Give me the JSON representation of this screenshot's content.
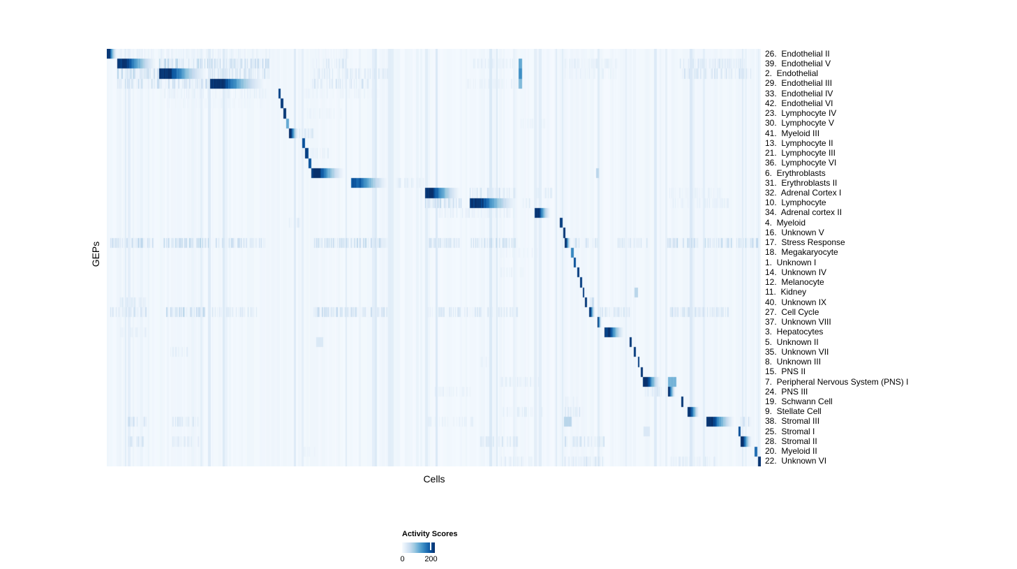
{
  "chart_data": {
    "type": "heatmap",
    "title": "",
    "xlabel": "Cells",
    "ylabel": "GEPs",
    "grid": false,
    "colorbar": {
      "title": "Activity Scores",
      "tick_labels": [
        "0",
        "200"
      ],
      "ticks": [
        0,
        200
      ],
      "domain": [
        0,
        230
      ]
    },
    "colormap": {
      "name": "Blues",
      "stops": [
        "#f7fbff",
        "#deebf7",
        "#c6dbef",
        "#9ecae1",
        "#6baed6",
        "#4292c6",
        "#2171b5",
        "#08519c",
        "#08306b"
      ]
    },
    "n_rows": 42,
    "rows": [
      {
        "label": "26.  Endothelial II",
        "segments": [
          [
            0.0,
            0.016,
            1.0,
            "fade"
          ],
          [
            0.02,
            0.25,
            0.1,
            "stripes"
          ],
          [
            0.315,
            0.37,
            0.08,
            "stripes"
          ]
        ]
      },
      {
        "label": "39.  Endothelial V",
        "segments": [
          [
            0.016,
            0.08,
            1.0,
            "fade"
          ],
          [
            0.08,
            0.157,
            0.34,
            "stripes"
          ],
          [
            0.157,
            0.248,
            0.28,
            "stripes"
          ],
          [
            0.313,
            0.366,
            0.17,
            "stripes"
          ],
          [
            0.56,
            0.625,
            0.12,
            "stripes"
          ],
          [
            0.6295,
            0.634,
            0.55,
            "solid"
          ],
          [
            0.7,
            0.78,
            0.12,
            "stripes"
          ],
          [
            0.875,
            0.975,
            0.2,
            "stripes"
          ]
        ]
      },
      {
        "label": "2.  Endothelial",
        "segments": [
          [
            0.016,
            0.08,
            0.32,
            "stripes"
          ],
          [
            0.08,
            0.157,
            1.0,
            "fade"
          ],
          [
            0.157,
            0.248,
            0.27,
            "stripes"
          ],
          [
            0.313,
            0.43,
            0.16,
            "stripes"
          ],
          [
            0.6295,
            0.634,
            0.65,
            "solid"
          ],
          [
            0.7,
            0.78,
            0.1,
            "stripes"
          ],
          [
            0.875,
            0.985,
            0.22,
            "stripes"
          ]
        ]
      },
      {
        "label": "29.  Endothelial III",
        "segments": [
          [
            0.016,
            0.08,
            0.3,
            "stripes"
          ],
          [
            0.08,
            0.157,
            0.26,
            "stripes"
          ],
          [
            0.157,
            0.248,
            1.0,
            "fade"
          ],
          [
            0.313,
            0.4,
            0.22,
            "stripes"
          ],
          [
            0.55,
            0.63,
            0.1,
            "stripes"
          ],
          [
            0.6295,
            0.634,
            0.45,
            "solid"
          ]
        ]
      },
      {
        "label": "33.  Endothelial IV",
        "segments": [
          [
            0.085,
            0.245,
            0.12,
            "stripes"
          ],
          [
            0.2615,
            0.2655,
            1.0,
            "solid"
          ],
          [
            0.3,
            0.42,
            0.08,
            "stripes"
          ]
        ]
      },
      {
        "label": "42.  Endothelial VI",
        "segments": [
          [
            0.09,
            0.24,
            0.06,
            "stripes"
          ],
          [
            0.2655,
            0.269,
            1.0,
            "solid"
          ]
        ]
      },
      {
        "label": "23.  Lymphocyte IV",
        "segments": [
          [
            0.27,
            0.2735,
            1.0,
            "solid"
          ],
          [
            0.3,
            0.36,
            0.08,
            "stripes"
          ]
        ]
      },
      {
        "label": "30.  Lymphocyte V",
        "segments": [
          [
            0.2735,
            0.2785,
            0.55,
            "solid"
          ],
          [
            0.63,
            0.67,
            0.08,
            "stripes"
          ]
        ]
      },
      {
        "label": "41.  Myeloid III",
        "segments": [
          [
            0.2775,
            0.2935,
            1.0,
            "fade"
          ],
          [
            0.2935,
            0.315,
            0.18,
            "stripes"
          ]
        ]
      },
      {
        "label": "13.  Lymphocyte II",
        "segments": [
          [
            0.2988,
            0.3022,
            0.92,
            "solid"
          ]
        ]
      },
      {
        "label": "21.  Lymphocyte III",
        "segments": [
          [
            0.3022,
            0.3074,
            0.95,
            "solid"
          ],
          [
            0.31,
            0.34,
            0.12,
            "stripes"
          ]
        ]
      },
      {
        "label": "36.  Lymphocyte VI",
        "segments": [
          [
            0.3074,
            0.3127,
            0.9,
            "solid"
          ]
        ]
      },
      {
        "label": "6.  Erythroblasts",
        "segments": [
          [
            0.3127,
            0.366,
            1.0,
            "fade"
          ],
          [
            0.748,
            0.752,
            0.3,
            "solid"
          ]
        ]
      },
      {
        "label": "31.  Erythroblasts II",
        "segments": [
          [
            0.3735,
            0.4343,
            0.85,
            "fade"
          ],
          [
            0.4343,
            0.485,
            0.14,
            "stripes"
          ]
        ]
      },
      {
        "label": "32.  Adrenal Cortex I",
        "segments": [
          [
            0.4856,
            0.5432,
            1.0,
            "fade"
          ],
          [
            0.5539,
            0.625,
            0.25,
            "stripes"
          ],
          [
            0.655,
            0.68,
            0.14,
            "stripes"
          ],
          [
            0.86,
            0.94,
            0.1,
            "stripes"
          ]
        ]
      },
      {
        "label": "10.  Lymphocyte",
        "segments": [
          [
            0.4856,
            0.5432,
            0.3,
            "stripes"
          ],
          [
            0.5539,
            0.6318,
            1.0,
            "fade"
          ],
          [
            0.634,
            0.651,
            0.18,
            "stripes"
          ],
          [
            0.86,
            0.95,
            0.12,
            "stripes"
          ]
        ]
      },
      {
        "label": "34.  Adrenal cortex II",
        "segments": [
          [
            0.5,
            0.625,
            0.12,
            "stripes"
          ],
          [
            0.6542,
            0.6798,
            1.0,
            "fade"
          ]
        ]
      },
      {
        "label": "4.  Myeloid",
        "segments": [
          [
            0.2775,
            0.2965,
            0.3,
            "stripes"
          ],
          [
            0.6926,
            0.6969,
            1.0,
            "solid"
          ]
        ]
      },
      {
        "label": "16.  Unknown V",
        "segments": [
          [
            0.6973,
            0.7005,
            1.0,
            "solid"
          ]
        ]
      },
      {
        "label": "17.  Stress Response",
        "segments": [
          [
            0.005,
            0.072,
            0.3,
            "stripes"
          ],
          [
            0.085,
            0.155,
            0.32,
            "stripes"
          ],
          [
            0.16,
            0.245,
            0.26,
            "stripes"
          ],
          [
            0.315,
            0.43,
            0.3,
            "stripes"
          ],
          [
            0.487,
            0.54,
            0.25,
            "stripes"
          ],
          [
            0.555,
            0.628,
            0.3,
            "stripes"
          ],
          [
            0.6995,
            0.7097,
            1.0,
            "fade"
          ],
          [
            0.713,
            0.75,
            0.25,
            "stripes"
          ],
          [
            0.78,
            0.83,
            0.22,
            "stripes"
          ],
          [
            0.855,
            0.905,
            0.3,
            "stripes"
          ],
          [
            0.912,
            0.958,
            0.34,
            "stripes"
          ],
          [
            0.962,
            0.995,
            0.3,
            "stripes"
          ]
        ]
      },
      {
        "label": "18.  Megakaryocyte",
        "segments": [
          [
            0.6,
            0.66,
            0.08,
            "stripes"
          ],
          [
            0.7097,
            0.7135,
            0.7,
            "solid"
          ]
        ]
      },
      {
        "label": "1.  Unknown I",
        "segments": [
          [
            0.7135,
            0.717,
            0.92,
            "solid"
          ]
        ]
      },
      {
        "label": "14.  Unknown IV",
        "segments": [
          [
            0.6,
            0.64,
            0.08,
            "stripes"
          ],
          [
            0.7185,
            0.7218,
            1.0,
            "solid"
          ]
        ]
      },
      {
        "label": "12.  Melanocyte",
        "segments": [
          [
            0.7228,
            0.7258,
            1.0,
            "solid"
          ]
        ]
      },
      {
        "label": "11.  Kidney",
        "segments": [
          [
            0.7268,
            0.7298,
            1.0,
            "solid"
          ],
          [
            0.806,
            0.812,
            0.3,
            "solid"
          ]
        ]
      },
      {
        "label": "40.  Unknown IX",
        "segments": [
          [
            0.02,
            0.06,
            0.15,
            "stripes"
          ],
          [
            0.7308,
            0.7338,
            1.0,
            "solid"
          ],
          [
            0.736,
            0.744,
            0.25,
            "stripes"
          ]
        ]
      },
      {
        "label": "27.  Cell Cycle",
        "segments": [
          [
            0.005,
            0.06,
            0.25,
            "stripes"
          ],
          [
            0.09,
            0.15,
            0.3,
            "stripes"
          ],
          [
            0.16,
            0.23,
            0.2,
            "stripes"
          ],
          [
            0.315,
            0.43,
            0.3,
            "stripes"
          ],
          [
            0.49,
            0.628,
            0.2,
            "stripes"
          ],
          [
            0.7364,
            0.747,
            1.0,
            "fade"
          ],
          [
            0.75,
            0.8,
            0.2,
            "stripes"
          ],
          [
            0.86,
            0.95,
            0.24,
            "stripes"
          ]
        ]
      },
      {
        "label": "37.  Unknown VIII",
        "segments": [
          [
            0.7492,
            0.7566,
            1.0,
            "fade"
          ]
        ]
      },
      {
        "label": "3.  Hepatocytes",
        "segments": [
          [
            0.02,
            0.06,
            0.1,
            "stripes"
          ],
          [
            0.7609,
            0.7929,
            1.0,
            "fade"
          ]
        ]
      },
      {
        "label": "5.  Unknown II",
        "segments": [
          [
            0.32,
            0.33,
            0.15,
            "solid"
          ],
          [
            0.7983,
            0.8015,
            1.0,
            "solid"
          ]
        ]
      },
      {
        "label": "35.  Unknown VII",
        "segments": [
          [
            0.095,
            0.125,
            0.14,
            "stripes"
          ],
          [
            0.8047,
            0.8079,
            1.0,
            "solid"
          ]
        ]
      },
      {
        "label": "8.  Unknown III",
        "segments": [
          [
            0.57,
            0.59,
            0.1,
            "stripes"
          ],
          [
            0.8111,
            0.8143,
            1.0,
            "solid"
          ]
        ]
      },
      {
        "label": "15.  PNS II",
        "segments": [
          [
            0.8154,
            0.8186,
            1.0,
            "solid"
          ]
        ]
      },
      {
        "label": "7.  Peripheral Nervous System (PNS) I",
        "segments": [
          [
            0.6,
            0.66,
            0.12,
            "stripes"
          ],
          [
            0.8196,
            0.8485,
            1.0,
            "fade"
          ],
          [
            0.857,
            0.8698,
            0.5,
            "solid"
          ]
        ]
      },
      {
        "label": "24.  PNS III",
        "segments": [
          [
            0.5,
            0.56,
            0.1,
            "stripes"
          ],
          [
            0.822,
            0.848,
            0.2,
            "stripes"
          ],
          [
            0.857,
            0.8698,
            1.0,
            "fade"
          ]
        ]
      },
      {
        "label": "19.  Schwann Cell",
        "segments": [
          [
            0.7,
            0.72,
            0.1,
            "stripes"
          ],
          [
            0.8773,
            0.8815,
            1.0,
            "solid"
          ]
        ]
      },
      {
        "label": "9.  Stellate Cell",
        "segments": [
          [
            0.6,
            0.67,
            0.15,
            "stripes"
          ],
          [
            0.7,
            0.73,
            0.2,
            "stripes"
          ],
          [
            0.8879,
            0.9072,
            1.0,
            "fade"
          ]
        ]
      },
      {
        "label": "38.  Stromal III",
        "segments": [
          [
            0.03,
            0.06,
            0.28,
            "stripes"
          ],
          [
            0.1,
            0.14,
            0.2,
            "stripes"
          ],
          [
            0.49,
            0.56,
            0.12,
            "stripes"
          ],
          [
            0.698,
            0.71,
            0.3,
            "solid"
          ],
          [
            0.9157,
            0.9627,
            1.0,
            "fade"
          ],
          [
            0.968,
            0.985,
            0.25,
            "stripes"
          ]
        ]
      },
      {
        "label": "25.  Stromal I",
        "segments": [
          [
            0.82,
            0.83,
            0.15,
            "solid"
          ],
          [
            0.9648,
            0.968,
            0.9,
            "solid"
          ]
        ]
      },
      {
        "label": "28.  Stromal II",
        "segments": [
          [
            0.03,
            0.06,
            0.22,
            "stripes"
          ],
          [
            0.1,
            0.14,
            0.14,
            "stripes"
          ],
          [
            0.57,
            0.628,
            0.2,
            "stripes"
          ],
          [
            0.7,
            0.76,
            0.24,
            "stripes"
          ],
          [
            0.968,
            0.9872,
            1.0,
            "fade"
          ]
        ]
      },
      {
        "label": "20.  Myeloid II",
        "segments": [
          [
            0.3,
            0.32,
            0.1,
            "stripes"
          ],
          [
            0.99,
            0.9936,
            0.8,
            "solid"
          ]
        ]
      },
      {
        "label": "22.  Unknown VI",
        "segments": [
          [
            0.6,
            0.65,
            0.12,
            "stripes"
          ],
          [
            0.7,
            0.76,
            0.2,
            "stripes"
          ],
          [
            0.86,
            0.93,
            0.15,
            "stripes"
          ],
          [
            0.9947,
            1.0,
            1.0,
            "solid"
          ]
        ]
      }
    ],
    "render_hints": {
      "noise_seed": 1337,
      "background_value": 0.012,
      "column_noise_strong_prob": 0.18,
      "column_noise_strong_max": 0.12,
      "column_noise_weak_max": 0.032,
      "legend_tick_fraction": 0.86
    }
  }
}
